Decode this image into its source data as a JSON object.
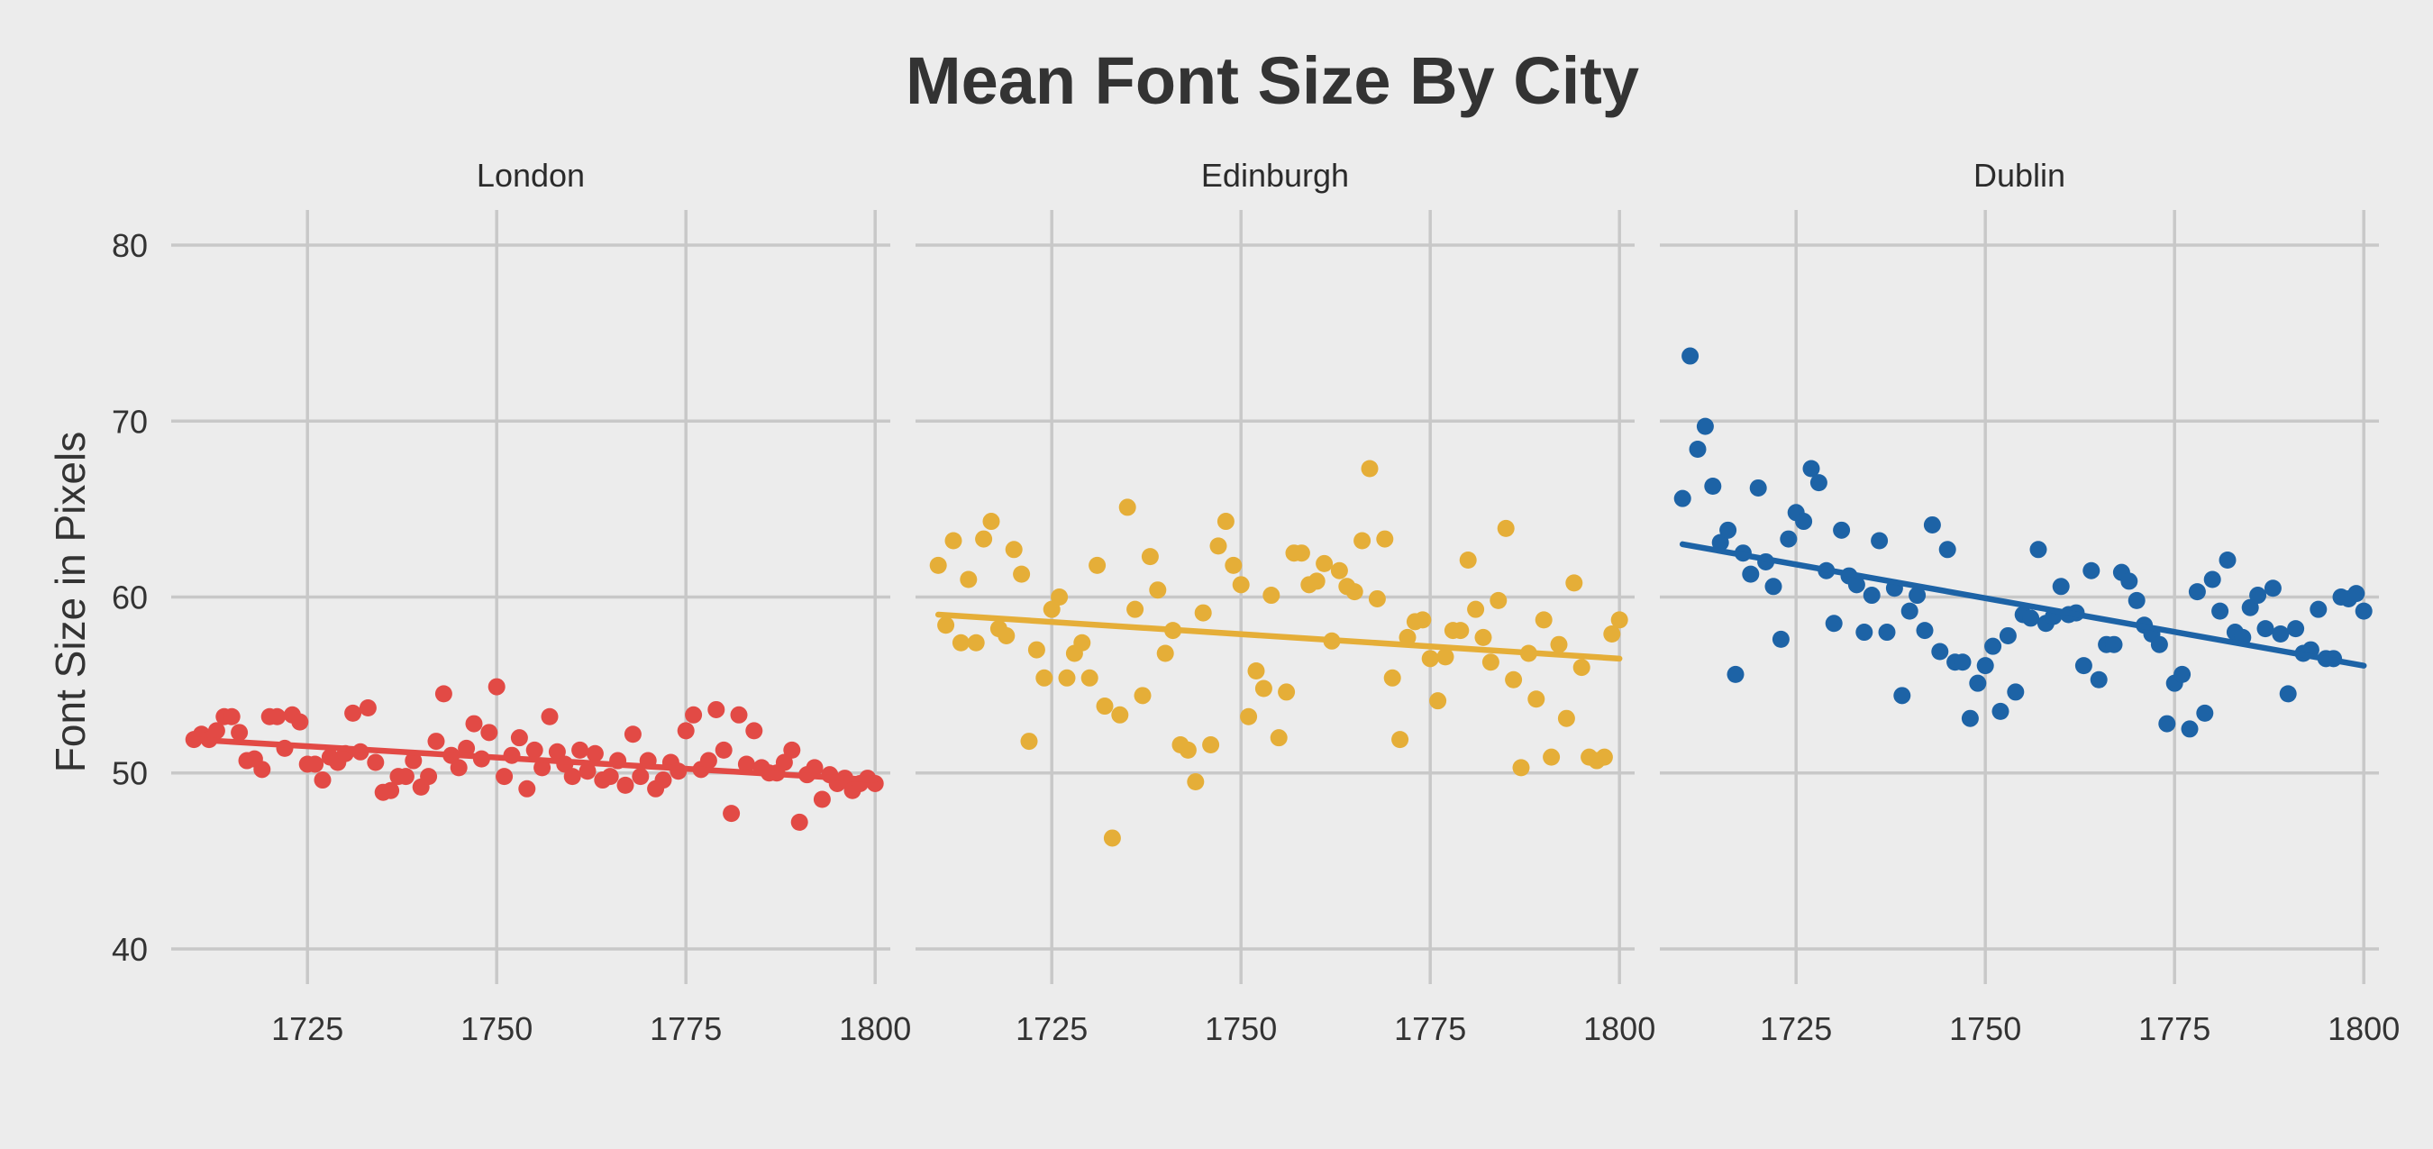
{
  "chart_data": {
    "type": "scatter",
    "title": "Mean Font Size By City",
    "xlabel": "",
    "ylabel": "Font Size in Pixels",
    "xlim": [
      1707,
      1802
    ],
    "ylim": [
      38,
      82
    ],
    "x_ticks": [
      1725,
      1750,
      1775,
      1800
    ],
    "y_ticks": [
      40,
      50,
      60,
      70,
      80
    ],
    "grid": true,
    "layout": "facets in a row, shared y axis",
    "facets": [
      {
        "name": "London",
        "color": "#e24a45",
        "x": [
          1710,
          1711,
          1712,
          1713,
          1714,
          1715,
          1716,
          1717,
          1718,
          1719,
          1720,
          1721,
          1722,
          1723,
          1724,
          1725,
          1726,
          1727,
          1728,
          1729,
          1730,
          1731,
          1732,
          1733,
          1734,
          1735,
          1736,
          1737,
          1738,
          1739,
          1740,
          1741,
          1742,
          1743,
          1744,
          1745,
          1746,
          1747,
          1748,
          1749,
          1750,
          1751,
          1752,
          1753,
          1754,
          1755,
          1756,
          1757,
          1758,
          1759,
          1760,
          1761,
          1762,
          1763,
          1764,
          1765,
          1766,
          1767,
          1768,
          1769,
          1770,
          1771,
          1772,
          1773,
          1774,
          1775,
          1776,
          1777,
          1778,
          1779,
          1780,
          1781,
          1782,
          1783,
          1784,
          1785,
          1786,
          1787,
          1788,
          1789,
          1790,
          1791,
          1792,
          1793,
          1794,
          1795,
          1796,
          1797,
          1798,
          1799,
          1800
        ],
        "y": [
          51.9,
          52.2,
          51.9,
          52.4,
          53.2,
          53.2,
          52.3,
          50.7,
          50.8,
          50.2,
          53.2,
          53.2,
          51.4,
          53.3,
          52.9,
          50.5,
          50.5,
          49.6,
          50.9,
          50.6,
          51.1,
          53.4,
          51.2,
          53.7,
          50.6,
          48.9,
          49.0,
          49.8,
          49.8,
          50.7,
          49.2,
          49.8,
          51.8,
          54.5,
          51.0,
          50.3,
          51.4,
          52.8,
          50.8,
          52.3,
          54.9,
          49.8,
          51.0,
          52.0,
          49.1,
          51.3,
          50.3,
          53.2,
          51.2,
          50.5,
          49.8,
          51.3,
          50.1,
          51.1,
          49.6,
          49.8,
          50.7,
          49.3,
          52.2,
          49.8,
          50.7,
          49.1,
          49.6,
          50.6,
          50.1,
          52.4,
          53.3,
          50.2,
          50.7,
          53.6,
          51.3,
          47.7,
          53.3,
          50.5,
          52.4,
          50.3,
          50.0,
          50.0,
          50.6,
          51.3,
          47.2,
          49.9,
          50.3,
          48.5,
          49.9,
          49.4,
          49.7,
          49.0,
          49.4,
          49.7,
          49.4
        ],
        "trend": [
          51.9,
          49.6
        ]
      },
      {
        "name": "Edinburgh",
        "color": "#e5ae38",
        "x": [
          1710,
          1711,
          1712,
          1713,
          1714,
          1715,
          1716,
          1717,
          1718,
          1719,
          1720,
          1721,
          1722,
          1723,
          1724,
          1725,
          1726,
          1727,
          1728,
          1729,
          1730,
          1731,
          1732,
          1733,
          1734,
          1735,
          1736,
          1737,
          1738,
          1739,
          1740,
          1741,
          1742,
          1743,
          1744,
          1745,
          1746,
          1747,
          1748,
          1749,
          1750,
          1751,
          1752,
          1753,
          1754,
          1755,
          1756,
          1757,
          1758,
          1759,
          1760,
          1761,
          1762,
          1763,
          1764,
          1765,
          1766,
          1767,
          1768,
          1769,
          1770,
          1771,
          1772,
          1773,
          1774,
          1775,
          1776,
          1777,
          1778,
          1779,
          1780,
          1781,
          1782,
          1783,
          1784,
          1785,
          1786,
          1787,
          1788,
          1789,
          1790,
          1791,
          1792,
          1793,
          1794,
          1795,
          1796,
          1797,
          1798,
          1799,
          1800
        ],
        "y": [
          61.8,
          58.4,
          63.2,
          57.4,
          61.0,
          57.4,
          63.3,
          64.3,
          58.2,
          57.8,
          62.7,
          61.3,
          51.8,
          57.0,
          55.4,
          59.3,
          60.0,
          55.4,
          56.8,
          57.4,
          55.4,
          61.8,
          53.8,
          46.3,
          53.3,
          65.1,
          59.3,
          54.4,
          62.3,
          60.4,
          56.8,
          58.1,
          51.6,
          51.3,
          49.5,
          59.1,
          51.6,
          62.9,
          64.3,
          61.8,
          60.7,
          53.2,
          55.8,
          54.8,
          60.1,
          52.0,
          54.6,
          62.5,
          62.5,
          60.7,
          60.9,
          61.9,
          57.5,
          61.5,
          60.6,
          60.3,
          63.2,
          67.3,
          59.9,
          63.3,
          55.4,
          51.9,
          57.7,
          58.6,
          58.7,
          56.5,
          54.1,
          56.6,
          58.1,
          58.1,
          62.1,
          59.3,
          57.7,
          56.3,
          59.8,
          63.9,
          55.3,
          50.3,
          56.8,
          54.2,
          58.7,
          50.9,
          57.3,
          53.1,
          60.8,
          56.0,
          50.9,
          50.7,
          50.9,
          57.9,
          58.7
        ],
        "trend": [
          59.0,
          56.5
        ]
      },
      {
        "name": "Dublin",
        "color": "#1d63a6",
        "x": [
          1710,
          1711,
          1712,
          1713,
          1714,
          1715,
          1716,
          1717,
          1718,
          1719,
          1720,
          1721,
          1722,
          1723,
          1724,
          1725,
          1726,
          1727,
          1728,
          1729,
          1730,
          1731,
          1732,
          1733,
          1734,
          1735,
          1736,
          1737,
          1738,
          1739,
          1740,
          1741,
          1742,
          1743,
          1744,
          1745,
          1746,
          1747,
          1748,
          1749,
          1750,
          1751,
          1752,
          1753,
          1754,
          1755,
          1756,
          1757,
          1758,
          1759,
          1760,
          1761,
          1762,
          1763,
          1764,
          1765,
          1766,
          1767,
          1768,
          1769,
          1770,
          1771,
          1772,
          1773,
          1774,
          1775,
          1776,
          1777,
          1778,
          1779,
          1780,
          1781,
          1782,
          1783,
          1784,
          1785,
          1786,
          1787,
          1788,
          1789,
          1790,
          1791,
          1792,
          1793,
          1794,
          1795,
          1796,
          1797,
          1798,
          1799,
          1800
        ],
        "y": [
          65.6,
          73.7,
          68.4,
          69.7,
          66.3,
          63.1,
          63.8,
          55.6,
          62.5,
          61.3,
          66.2,
          62.0,
          60.6,
          57.6,
          63.3,
          64.8,
          64.3,
          67.3,
          66.5,
          61.5,
          58.5,
          63.8,
          61.2,
          60.7,
          58.0,
          60.1,
          63.2,
          58.0,
          60.5,
          54.4,
          59.2,
          60.1,
          58.1,
          64.1,
          56.9,
          62.7,
          56.3,
          56.3,
          53.1,
          55.1,
          56.1,
          57.2,
          53.5,
          57.8,
          54.6,
          59.0,
          58.8,
          62.7,
          58.5,
          58.9,
          60.6,
          59.0,
          59.1,
          56.1,
          61.5,
          55.3,
          57.3,
          57.3,
          61.4,
          60.9,
          59.8,
          58.4,
          57.9,
          57.3,
          52.8,
          55.1,
          55.6,
          52.5,
          60.3,
          53.4,
          61.0,
          59.2,
          62.1,
          58.0,
          57.7,
          59.4,
          60.1,
          58.2,
          60.5,
          57.9,
          54.5,
          58.2,
          56.8,
          57.0,
          59.3,
          56.5,
          56.5,
          60.0,
          59.9,
          60.2,
          59.2
        ],
        "trend": [
          63.0,
          56.1
        ]
      }
    ]
  }
}
